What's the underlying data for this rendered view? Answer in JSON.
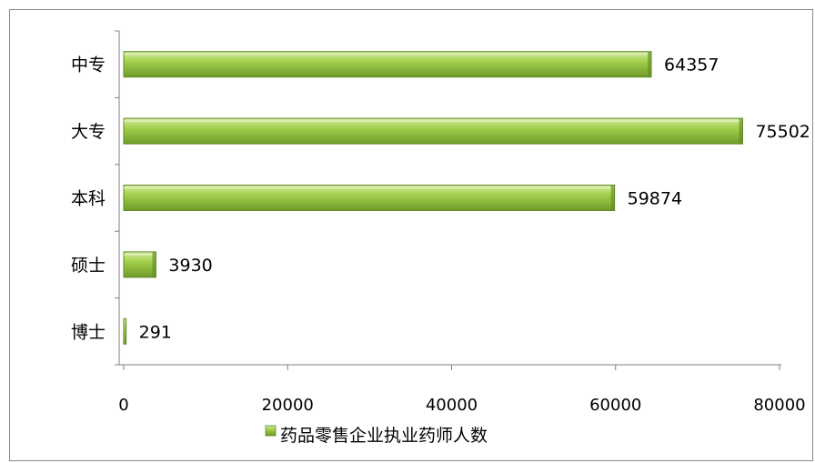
{
  "chart_data": {
    "type": "bar",
    "orientation": "horizontal",
    "categories": [
      "中专",
      "大专",
      "本科",
      "硕士",
      "博士"
    ],
    "series": [
      {
        "name": "药品零售企业执业药师人数",
        "values": [
          64357,
          75502,
          59874,
          3930,
          291
        ],
        "color": "#8fbf3a"
      }
    ],
    "data_labels": [
      "64357",
      "75502",
      "59874",
      "3930",
      "291"
    ],
    "xlim": [
      0,
      80000
    ],
    "x_ticks": [
      "0",
      "20000",
      "40000",
      "60000",
      "80000"
    ],
    "title": "",
    "xlabel": "",
    "ylabel": "",
    "grid": false,
    "legend": {
      "position": "bottom",
      "label": "药品零售企业执业药师人数"
    }
  }
}
